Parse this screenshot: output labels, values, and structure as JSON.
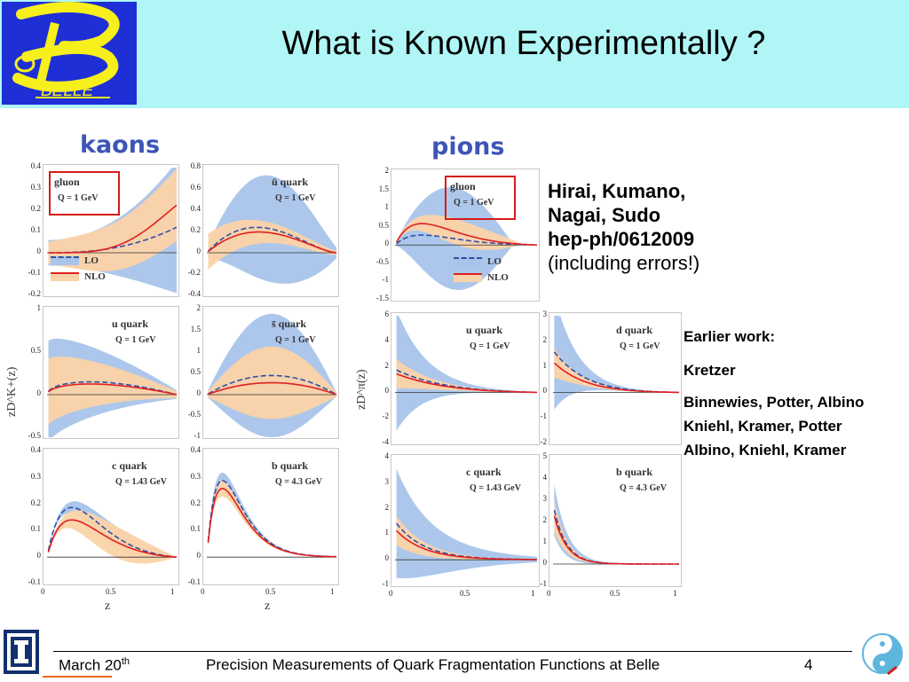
{
  "header": {
    "title": "What is Known Experimentally ?",
    "logo_text": "BELLE"
  },
  "panels": {
    "kaons": "kaons",
    "pions": "pions"
  },
  "axis": {
    "ylabel_kaons": "zD^K+(z)",
    "ylabel_pions": "zD^π(z)",
    "xlabel": "z"
  },
  "legend": {
    "lo": "LO",
    "nlo": "NLO"
  },
  "kaon_plots": [
    {
      "label": "gluon",
      "q": "Q = 1 GeV",
      "ymin": -0.2,
      "ymax": 0.4,
      "yticks": [
        "0.4",
        "0.3",
        "0.2",
        "0.1",
        "0",
        "-0.1",
        "-0.2"
      ]
    },
    {
      "label": "ū quark",
      "q": "Q = 1 GeV",
      "ymin": -0.4,
      "ymax": 0.8,
      "yticks": [
        "0.8",
        "0.6",
        "0.4",
        "0.2",
        "0",
        "-0.2",
        "-0.4"
      ]
    },
    {
      "label": "u quark",
      "q": "Q = 1 GeV",
      "ymin": -0.5,
      "ymax": 1,
      "yticks": [
        "1",
        "0.5",
        "0",
        "-0.5"
      ]
    },
    {
      "label": "s̄ quark",
      "q": "Q = 1 GeV",
      "ymin": -1,
      "ymax": 2,
      "yticks": [
        "2",
        "1.5",
        "1",
        "0.5",
        "0",
        "-0.5",
        "-1"
      ]
    },
    {
      "label": "c quark",
      "q": "Q = 1.43 GeV",
      "ymin": -0.1,
      "ymax": 0.4,
      "yticks": [
        "0.4",
        "0.3",
        "0.2",
        "0.1",
        "0",
        "-0.1"
      ]
    },
    {
      "label": "b quark",
      "q": "Q = 4.3 GeV",
      "ymin": -0.1,
      "ymax": 0.4,
      "yticks": [
        "0.4",
        "0.3",
        "0.2",
        "0.1",
        "0",
        "-0.1"
      ]
    }
  ],
  "pion_plots": [
    {
      "label": "gluon",
      "q": "Q = 1 GeV",
      "ymin": -1.5,
      "ymax": 2,
      "yticks": [
        "2",
        "1.5",
        "1",
        "0.5",
        "0",
        "-0.5",
        "-1",
        "-1.5"
      ]
    },
    {
      "label": "u quark",
      "q": "Q = 1 GeV",
      "ymin": -4,
      "ymax": 6,
      "yticks": [
        "6",
        "4",
        "2",
        "0",
        "-2",
        "-4"
      ]
    },
    {
      "label": "d quark",
      "q": "Q = 1 GeV",
      "ymin": -2,
      "ymax": 3,
      "yticks": [
        "3",
        "2",
        "1",
        "0",
        "-1",
        "-2"
      ]
    },
    {
      "label": "c quark",
      "q": "Q = 1.43 GeV",
      "ymin": -1,
      "ymax": 4,
      "yticks": [
        "4",
        "3",
        "2",
        "1",
        "0",
        "-1"
      ]
    },
    {
      "label": "b quark",
      "q": "Q = 4.3 GeV",
      "ymin": -1,
      "ymax": 5,
      "yticks": [
        "5",
        "4",
        "3",
        "2",
        "1",
        "0",
        "-1"
      ]
    }
  ],
  "xticks": [
    "0",
    "0.5",
    "1"
  ],
  "reference": {
    "line1": "Hirai, Kumano,",
    "line2": "Nagai, Sudo",
    "line3": "hep-ph/0612009",
    "line4": "(including errors!)"
  },
  "earlier": {
    "title": "Earlier work:",
    "a": "Kretzer",
    "b": "Binnewies, Potter, Albino",
    "c": "Kniehl, Kramer, Potter",
    "d": "Albino, Kniehl, Kramer"
  },
  "footer": {
    "date": "March 20",
    "date_sup": "th",
    "title": "Precision Measurements of Quark Fragmentation Functions at Belle",
    "page": "4"
  },
  "colors": {
    "band_lo": "#a8c4ea",
    "band_nlo": "#fbd3a8",
    "nlo_line": "#e02020",
    "lo_line": "#3050a8",
    "label_box": "#d81a1a",
    "heading": "#3d55b8"
  }
}
